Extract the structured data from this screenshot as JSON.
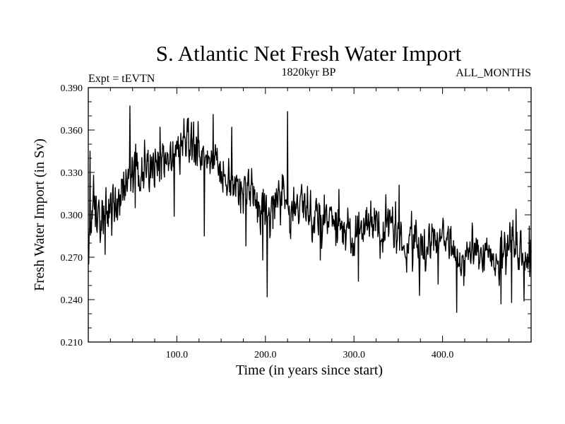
{
  "chart_data": {
    "type": "line",
    "title": "S. Atlantic Net Fresh Water Import",
    "subtitle": "1820kyr BP",
    "experiment_label": "Expt = tEVTN",
    "months_label": "ALL_MONTHS",
    "xlabel": "Time (in years since start)",
    "ylabel": "Fresh Water Import (in Sv)",
    "xlim": [
      0,
      500
    ],
    "ylim": [
      0.21,
      0.39
    ],
    "x_ticks": [
      {
        "value": 100,
        "label": "100.0"
      },
      {
        "value": 200,
        "label": "200.0"
      },
      {
        "value": 300,
        "label": "300.0"
      },
      {
        "value": 400,
        "label": "400.0"
      }
    ],
    "y_ticks": [
      {
        "value": 0.21,
        "label": "0.210"
      },
      {
        "value": 0.24,
        "label": "0.240"
      },
      {
        "value": 0.27,
        "label": "0.270"
      },
      {
        "value": 0.3,
        "label": "0.300"
      },
      {
        "value": 0.33,
        "label": "0.330"
      },
      {
        "value": 0.36,
        "label": "0.360"
      },
      {
        "value": 0.39,
        "label": "0.390"
      }
    ],
    "series": [
      {
        "name": "Net fresh water import",
        "color": "#000000",
        "trend_x": [
          0,
          5,
          10,
          20,
          30,
          40,
          50,
          60,
          70,
          80,
          90,
          100,
          110,
          120,
          130,
          140,
          150,
          160,
          170,
          180,
          190,
          200,
          210,
          220,
          230,
          240,
          250,
          260,
          270,
          280,
          290,
          300,
          310,
          320,
          330,
          340,
          350,
          360,
          370,
          380,
          390,
          400,
          410,
          420,
          430,
          440,
          450,
          460,
          470,
          480,
          490,
          500
        ],
        "trend_y": [
          0.285,
          0.31,
          0.305,
          0.3,
          0.303,
          0.318,
          0.33,
          0.332,
          0.338,
          0.342,
          0.335,
          0.345,
          0.35,
          0.348,
          0.338,
          0.34,
          0.33,
          0.328,
          0.322,
          0.318,
          0.312,
          0.302,
          0.305,
          0.315,
          0.308,
          0.305,
          0.3,
          0.295,
          0.298,
          0.295,
          0.288,
          0.285,
          0.292,
          0.29,
          0.288,
          0.29,
          0.285,
          0.28,
          0.283,
          0.275,
          0.285,
          0.278,
          0.282,
          0.27,
          0.275,
          0.272,
          0.268,
          0.27,
          0.275,
          0.27,
          0.268,
          0.27
        ],
        "spikes": [
          {
            "x": 2,
            "y": 0.345
          },
          {
            "x": 6,
            "y": 0.328
          },
          {
            "x": 19,
            "y": 0.272
          },
          {
            "x": 47,
            "y": 0.377
          },
          {
            "x": 53,
            "y": 0.305
          },
          {
            "x": 81,
            "y": 0.362
          },
          {
            "x": 97,
            "y": 0.299
          },
          {
            "x": 108,
            "y": 0.368
          },
          {
            "x": 124,
            "y": 0.366
          },
          {
            "x": 131,
            "y": 0.285
          },
          {
            "x": 141,
            "y": 0.371
          },
          {
            "x": 162,
            "y": 0.362
          },
          {
            "x": 178,
            "y": 0.278
          },
          {
            "x": 197,
            "y": 0.268
          },
          {
            "x": 202,
            "y": 0.242
          },
          {
            "x": 225,
            "y": 0.373
          },
          {
            "x": 262,
            "y": 0.268
          },
          {
            "x": 283,
            "y": 0.318
          },
          {
            "x": 305,
            "y": 0.253
          },
          {
            "x": 351,
            "y": 0.321
          },
          {
            "x": 366,
            "y": 0.26
          },
          {
            "x": 374,
            "y": 0.243
          },
          {
            "x": 395,
            "y": 0.251
          },
          {
            "x": 416,
            "y": 0.231
          },
          {
            "x": 424,
            "y": 0.25
          },
          {
            "x": 466,
            "y": 0.237
          },
          {
            "x": 478,
            "y": 0.238
          },
          {
            "x": 483,
            "y": 0.304
          },
          {
            "x": 492,
            "y": 0.239
          },
          {
            "x": 498,
            "y": 0.292
          }
        ],
        "noise_amplitude": 0.012,
        "step": 0.5
      }
    ]
  }
}
